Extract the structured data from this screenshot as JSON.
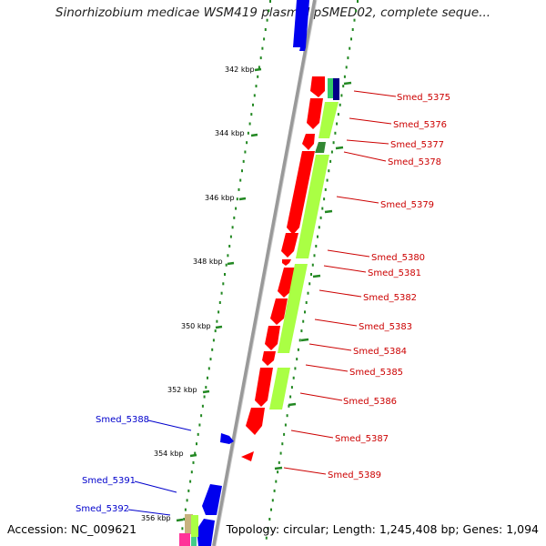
{
  "title": "Sinorhizobium medicae WSM419 plasmid pSMED02, complete seque...",
  "footer": {
    "accession": "Accession: NC_009621",
    "summary": "Topology: circular; Length: 1,245,408 bp; Genes: 1,094"
  },
  "ruler": {
    "labels": [
      "342 kbp",
      "344 kbp",
      "346 kbp",
      "348 kbp",
      "350 kbp",
      "352 kbp",
      "354 kbp",
      "356 kbp"
    ]
  },
  "genes_plus": [
    {
      "name": "Smed_5375"
    },
    {
      "name": "Smed_5376"
    },
    {
      "name": "Smed_5377"
    },
    {
      "name": "Smed_5378"
    },
    {
      "name": "Smed_5379"
    },
    {
      "name": "Smed_5380"
    },
    {
      "name": "Smed_5381"
    },
    {
      "name": "Smed_5382"
    },
    {
      "name": "Smed_5383"
    },
    {
      "name": "Smed_5384"
    },
    {
      "name": "Smed_5385"
    },
    {
      "name": "Smed_5386"
    },
    {
      "name": "Smed_5387"
    },
    {
      "name": "Smed_5389"
    }
  ],
  "genes_minus": [
    {
      "name": "Smed_5388"
    },
    {
      "name": "Smed_5391"
    },
    {
      "name": "Smed_5392"
    }
  ],
  "colors": {
    "forward_gene": "#ff0000",
    "reverse_gene": "#0000ff",
    "cog_green": "#aaff44",
    "backbone": "#999999",
    "tick_green": "#228822",
    "label_red": "#cc0000",
    "label_blue": "#0000cc"
  }
}
